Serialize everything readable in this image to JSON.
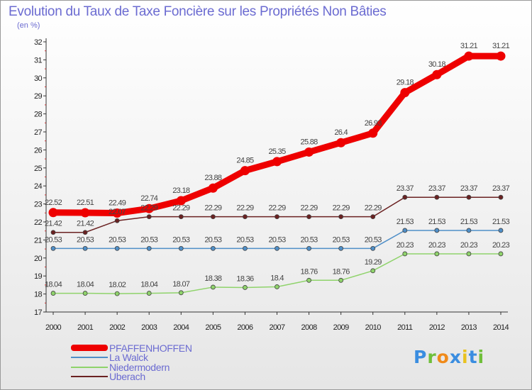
{
  "chart_data": {
    "type": "line",
    "title": "Evolution du Taux de Taxe Foncière sur les Propriétés Non Bâties",
    "subtitle": "(en %)",
    "xlabel": "",
    "ylabel": "(en %)",
    "x": [
      "2000",
      "2001",
      "2002",
      "2003",
      "2004",
      "2005",
      "2006",
      "2007",
      "2008",
      "2009",
      "2010",
      "2011",
      "2012",
      "2013",
      "2014"
    ],
    "ylim": [
      17,
      32
    ],
    "yticks": [
      "17",
      "18",
      "19",
      "20",
      "21",
      "22",
      "23",
      "24",
      "25",
      "26",
      "27",
      "28",
      "29",
      "30",
      "31",
      "32"
    ],
    "grid": false,
    "legend_position": "bottom-left",
    "series": [
      {
        "name": "PFAFFENHOFFEN",
        "color": "#ee0000",
        "emphasis": true,
        "values": [
          22.52,
          22.51,
          22.49,
          22.74,
          23.18,
          23.88,
          24.85,
          25.35,
          25.88,
          26.4,
          26.93,
          29.18,
          30.18,
          31.21,
          31.21
        ],
        "labels": [
          "22.52",
          "22.51",
          "22.49",
          "22.74",
          "23.18",
          "23.88",
          "24.85",
          "25.35",
          "25.88",
          "26.4",
          "26.93",
          "29.18",
          "30.18",
          "31.21",
          "31.21"
        ]
      },
      {
        "name": "La Walck",
        "color": "#4f8fc8",
        "emphasis": false,
        "values": [
          20.53,
          20.53,
          20.53,
          20.53,
          20.53,
          20.53,
          20.53,
          20.53,
          20.53,
          20.53,
          20.53,
          21.53,
          21.53,
          21.53,
          21.53
        ],
        "labels": [
          "20.53",
          "20.53",
          "20.53",
          "20.53",
          "20.53",
          "20.53",
          "20.53",
          "20.53",
          "20.53",
          "20.53",
          "20.53",
          "21.53",
          "21.53",
          "21.53",
          "21.53"
        ]
      },
      {
        "name": "Niedermodern",
        "color": "#8fd36b",
        "emphasis": false,
        "values": [
          18.04,
          18.04,
          18.02,
          18.04,
          18.07,
          18.38,
          18.36,
          18.4,
          18.76,
          18.76,
          19.29,
          20.23,
          20.23,
          20.23,
          20.23
        ],
        "labels": [
          "18.04",
          "18.04",
          "18.02",
          "18.04",
          "18.07",
          "18.38",
          "18.36",
          "18.4",
          "18.76",
          "18.76",
          "19.29",
          "20.23",
          "20.23",
          "20.23",
          "20.23"
        ]
      },
      {
        "name": "Uberach",
        "color": "#6a2121",
        "emphasis": false,
        "values": [
          21.42,
          21.42,
          22.07,
          22.29,
          22.29,
          22.29,
          22.29,
          22.29,
          22.29,
          22.29,
          22.29,
          23.37,
          23.37,
          23.37,
          23.37
        ],
        "labels": [
          "21.42",
          "21.42",
          "22.07",
          "22.29",
          "22.29",
          "22.29",
          "22.29",
          "22.29",
          "22.29",
          "22.29",
          "22.29",
          "23.37",
          "23.37",
          "23.37",
          "23.37"
        ]
      }
    ]
  },
  "legend": {
    "items": [
      "PFAFFENHOFFEN",
      "La Walck",
      "Niedermodern",
      "Uberach"
    ]
  },
  "logo": {
    "text": "Proxiti",
    "colors": [
      "#3a8de0",
      "#6fbf3a",
      "#f08a1a",
      "#3a8de0",
      "#e9c21f",
      "#3a8de0",
      "#6fbf3a"
    ]
  }
}
